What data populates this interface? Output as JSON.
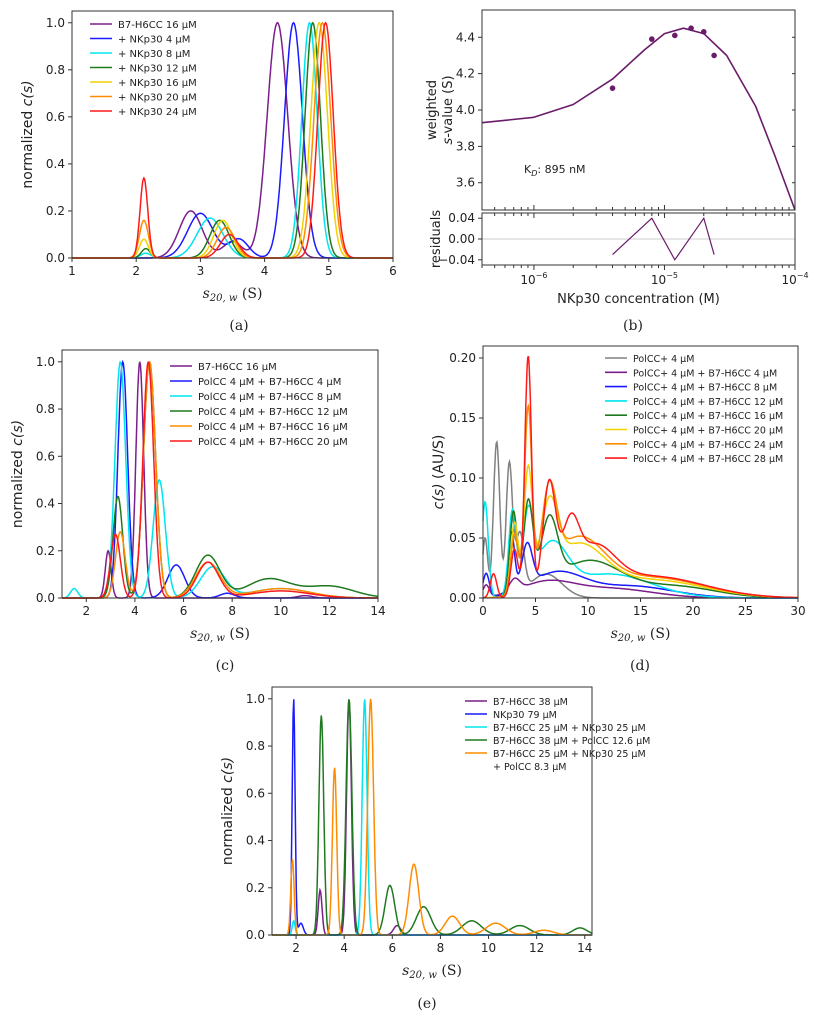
{
  "chart_data": [
    {
      "panel": "(a)",
      "type": "line",
      "xlabel_main": "s",
      "xlabel_sub": "20, w",
      "xlabel_unit": "(S)",
      "ylabel_main": "normalized ",
      "ylabel_italic": "c(s)",
      "xlim": [
        1,
        6
      ],
      "ylim": [
        0,
        1.05
      ],
      "xticks": [
        1,
        2,
        3,
        4,
        5,
        6
      ],
      "yticks": [
        0.0,
        0.2,
        0.4,
        0.6,
        0.8,
        1.0
      ],
      "ytick_labels": [
        "0.0",
        "0.2",
        "0.4",
        "0.6",
        "0.8",
        "1.0"
      ],
      "legend_position": "top-left",
      "series": [
        {
          "name": "B7-H6CC 16 μM",
          "color": "#7b1f8c",
          "peaks": [
            [
              2.85,
              0.2,
              0.18
            ],
            [
              3.5,
              0.07,
              0.15
            ],
            [
              4.2,
              1.0,
              0.16
            ]
          ]
        },
        {
          "name": " + NKp30  4 μM",
          "color": "#1a1aff",
          "peaks": [
            [
              3.0,
              0.19,
              0.2
            ],
            [
              3.6,
              0.08,
              0.15
            ],
            [
              4.45,
              1.0,
              0.14
            ]
          ]
        },
        {
          "name": " + NKp30  8 μM",
          "color": "#00e5ee",
          "peaks": [
            [
              2.15,
              0.02,
              0.08
            ],
            [
              3.15,
              0.17,
              0.2
            ],
            [
              4.7,
              1.0,
              0.12
            ]
          ]
        },
        {
          "name": " + NKp30  12 μM",
          "color": "#1f7a1f",
          "peaks": [
            [
              2.15,
              0.04,
              0.07
            ],
            [
              3.3,
              0.16,
              0.15
            ],
            [
              4.75,
              1.0,
              0.12
            ]
          ]
        },
        {
          "name": " + NKp30  16 μM",
          "color": "#f2d200",
          "peaks": [
            [
              2.12,
              0.08,
              0.07
            ],
            [
              3.35,
              0.16,
              0.14
            ],
            [
              4.85,
              1.0,
              0.13
            ]
          ]
        },
        {
          "name": " + NKp30  20 μM",
          "color": "#ff8c00",
          "peaks": [
            [
              2.12,
              0.16,
              0.07
            ],
            [
              3.4,
              0.13,
              0.14
            ],
            [
              4.9,
              1.0,
              0.13
            ]
          ]
        },
        {
          "name": " + NKp30  24 μM",
          "color": "#ff1a1a",
          "peaks": [
            [
              2.12,
              0.34,
              0.06
            ],
            [
              3.45,
              0.1,
              0.14
            ],
            [
              4.95,
              1.0,
              0.12
            ]
          ]
        }
      ]
    },
    {
      "panel": "(b)",
      "type": "scatter+line",
      "xlabel": "NKp30 concentration (M)",
      "ylabel_line1": "weighted",
      "ylabel_line2_italic": "s",
      "ylabel_line2_rest": "-value (S)",
      "ylabel_residuals": "residuals",
      "annotation": "K",
      "annotation_sub": "D",
      "annotation_rest": ": 895 nM",
      "xscale": "log",
      "xlim": [
        4e-07,
        0.0001
      ],
      "ylim": [
        3.45,
        4.55
      ],
      "yticks": [
        3.6,
        3.8,
        4.0,
        4.2,
        4.4
      ],
      "ytick_labels": [
        "3.6",
        "3.8",
        "4.0",
        "4.2",
        "4.4"
      ],
      "xtick_labels": [
        "10",
        "10",
        "10"
      ],
      "xtick_exponents": [
        "−6",
        "−5",
        "−4"
      ],
      "xtick_values": [
        1e-06,
        1e-05,
        0.0001
      ],
      "color": "#6a1b6a",
      "points": [
        [
          4e-06,
          4.12
        ],
        [
          8e-06,
          4.39
        ],
        [
          1.2e-05,
          4.41
        ],
        [
          1.6e-05,
          4.45
        ],
        [
          2e-05,
          4.43
        ],
        [
          2.4e-05,
          4.3
        ]
      ],
      "fit_curve": [
        [
          4e-07,
          3.93
        ],
        [
          1e-06,
          3.96
        ],
        [
          2e-06,
          4.03
        ],
        [
          4e-06,
          4.17
        ],
        [
          7e-06,
          4.33
        ],
        [
          1e-05,
          4.42
        ],
        [
          1.4e-05,
          4.45
        ],
        [
          2e-05,
          4.42
        ],
        [
          3e-05,
          4.3
        ],
        [
          5e-05,
          4.02
        ],
        [
          7e-05,
          3.75
        ],
        [
          0.0001,
          3.45
        ]
      ],
      "residuals_ylim": [
        -0.05,
        0.05
      ],
      "residuals_yticks": [
        -0.04,
        0.0,
        0.04
      ],
      "residuals_ytick_labels": [
        "−0.04",
        "0.00",
        "0.04"
      ],
      "residuals": [
        [
          4e-06,
          -0.03
        ],
        [
          8e-06,
          0.04
        ],
        [
          1.2e-05,
          -0.04
        ],
        [
          2e-05,
          0.04
        ],
        [
          2.4e-05,
          -0.03
        ]
      ]
    },
    {
      "panel": "(c)",
      "type": "line",
      "xlabel_main": "s",
      "xlabel_sub": "20, w",
      "xlabel_unit": "(S)",
      "ylabel_main": "normalized ",
      "ylabel_italic": "c(s)",
      "xlim": [
        1,
        14
      ],
      "ylim": [
        0,
        1.05
      ],
      "xticks": [
        2,
        4,
        6,
        8,
        10,
        12,
        14
      ],
      "yticks": [
        0.0,
        0.2,
        0.4,
        0.6,
        0.8,
        1.0
      ],
      "ytick_labels": [
        "0.0",
        "0.2",
        "0.4",
        "0.6",
        "0.8",
        "1.0"
      ],
      "legend_position": "top-right",
      "series": [
        {
          "name": "B7-H6CC 16 μM",
          "color": "#7b1f8c",
          "peaks": [
            [
              2.9,
              0.2,
              0.12
            ],
            [
              4.2,
              1.0,
              0.16
            ],
            [
              11.0,
              0.01,
              0.3
            ]
          ]
        },
        {
          "name": "PolCC 4 μM + B7-H6CC 4 μM",
          "color": "#1a1aff",
          "peaks": [
            [
              3.5,
              1.0,
              0.2
            ],
            [
              5.7,
              0.14,
              0.35
            ],
            [
              7.8,
              0.02,
              0.3
            ]
          ]
        },
        {
          "name": "PolCC 4 μM + B7-H6CC 8 μM",
          "color": "#00e5ee",
          "peaks": [
            [
              1.5,
              0.04,
              0.15
            ],
            [
              3.4,
              1.0,
              0.22
            ],
            [
              5.0,
              0.5,
              0.25
            ],
            [
              7.2,
              0.13,
              0.5
            ],
            [
              10.0,
              0.04,
              1.2
            ]
          ]
        },
        {
          "name": "PolCC 4 μM + B7-H6CC 12 μM",
          "color": "#1f7a1f",
          "peaks": [
            [
              3.3,
              0.43,
              0.2
            ],
            [
              4.6,
              1.0,
              0.25
            ],
            [
              7.0,
              0.18,
              0.5
            ],
            [
              9.5,
              0.08,
              0.9
            ],
            [
              12.0,
              0.05,
              1.0
            ]
          ]
        },
        {
          "name": "PolCC 4 μM + B7-H6CC 16 μM",
          "color": "#ff8c00",
          "peaks": [
            [
              3.4,
              0.28,
              0.2
            ],
            [
              4.6,
              1.0,
              0.25
            ],
            [
              7.0,
              0.15,
              0.5
            ],
            [
              10.0,
              0.04,
              1.2
            ]
          ]
        },
        {
          "name": "PolCC 4 μM + B7-H6CC 20 μM",
          "color": "#ff1a1a",
          "peaks": [
            [
              3.2,
              0.27,
              0.2
            ],
            [
              4.55,
              1.0,
              0.22
            ],
            [
              7.0,
              0.15,
              0.45
            ],
            [
              10.0,
              0.03,
              1.2
            ]
          ]
        }
      ]
    },
    {
      "panel": "(d)",
      "type": "line",
      "xlabel_main": "s",
      "xlabel_sub": "20, w",
      "xlabel_unit": "(S)",
      "ylabel_italic": "c(s)",
      "ylabel_main": " (AU/S)",
      "xlim": [
        0,
        30
      ],
      "ylim": [
        0,
        0.21
      ],
      "xticks": [
        0,
        5,
        10,
        15,
        20,
        25,
        30
      ],
      "yticks": [
        0.0,
        0.05,
        0.1,
        0.15,
        0.2
      ],
      "ytick_labels": [
        "0.00",
        "0.05",
        "0.10",
        "0.15",
        "0.20"
      ],
      "legend_position": "top-right",
      "series": [
        {
          "name": "PolCC+ 4 μM",
          "color": "#808080",
          "peaks": [
            [
              0.2,
              0.05,
              0.25
            ],
            [
              1.3,
              0.13,
              0.3
            ],
            [
              2.5,
              0.11,
              0.3
            ],
            [
              3.5,
              0.05,
              0.4
            ],
            [
              6,
              0.02,
              1.5
            ]
          ]
        },
        {
          "name": "PolCC+ 4 μM + B7-H6CC 4 μM",
          "color": "#7b1f8c",
          "peaks": [
            [
              0.3,
              0.01,
              0.3
            ],
            [
              3.0,
              0.01,
              0.5
            ],
            [
              6,
              0.012,
              2.5
            ],
            [
              12,
              0.008,
              4
            ]
          ]
        },
        {
          "name": "PolCC+ 4 μM + B7-H6CC 8 μM",
          "color": "#1a1aff",
          "peaks": [
            [
              0.3,
              0.02,
              0.3
            ],
            [
              2.7,
              0.05,
              0.3
            ],
            [
              4.2,
              0.035,
              0.5
            ],
            [
              7,
              0.02,
              2.5
            ],
            [
              14,
              0.01,
              4
            ]
          ]
        },
        {
          "name": "PolCC+ 4 μM + B7-H6CC 12 μM",
          "color": "#00e5ee",
          "peaks": [
            [
              0.2,
              0.08,
              0.3
            ],
            [
              2.8,
              0.07,
              0.35
            ],
            [
              4.3,
              0.06,
              0.5
            ],
            [
              6.5,
              0.04,
              1.5
            ],
            [
              12,
              0.02,
              4
            ]
          ]
        },
        {
          "name": "PolCC+ 4 μM + B7-H6CC 16 μM",
          "color": "#1f7a1f",
          "peaks": [
            [
              2.9,
              0.07,
              0.35
            ],
            [
              4.3,
              0.075,
              0.45
            ],
            [
              6.3,
              0.055,
              0.8
            ],
            [
              10,
              0.03,
              3
            ],
            [
              18,
              0.01,
              4
            ]
          ]
        },
        {
          "name": "PolCC+ 4 μM + B7-H6CC 20 μM",
          "color": "#f2d200",
          "peaks": [
            [
              3.0,
              0.06,
              0.35
            ],
            [
              4.3,
              0.1,
              0.4
            ],
            [
              6.3,
              0.06,
              0.8
            ],
            [
              9,
              0.04,
              2.5
            ],
            [
              16,
              0.015,
              5
            ]
          ]
        },
        {
          "name": "PolCC+ 4 μM + B7-H6CC 24 μM",
          "color": "#ff8c00",
          "peaks": [
            [
              3.0,
              0.05,
              0.35
            ],
            [
              4.3,
              0.15,
              0.35
            ],
            [
              6.3,
              0.07,
              0.7
            ],
            [
              9,
              0.045,
              2.5
            ],
            [
              16,
              0.017,
              5
            ]
          ]
        },
        {
          "name": "PolCC+ 4 μM + B7-H6CC 28 μM",
          "color": "#ff1a1a",
          "peaks": [
            [
              1.0,
              0.02,
              0.3
            ],
            [
              3.0,
              0.04,
              0.35
            ],
            [
              4.3,
              0.2,
              0.32
            ],
            [
              6.3,
              0.09,
              0.6
            ],
            [
              8.3,
              0.045,
              0.8
            ],
            [
              10.5,
              0.035,
              2
            ],
            [
              16,
              0.018,
              5
            ]
          ]
        }
      ]
    },
    {
      "panel": "(e)",
      "type": "line",
      "xlabel_main": "s",
      "xlabel_sub": "20, w",
      "xlabel_unit": "(S)",
      "ylabel_main": "normalized ",
      "ylabel_italic": "c(s)",
      "xlim": [
        1,
        14.3
      ],
      "ylim": [
        0,
        1.05
      ],
      "xticks": [
        2,
        4,
        6,
        8,
        10,
        12,
        14
      ],
      "yticks": [
        0.0,
        0.2,
        0.4,
        0.6,
        0.8,
        1.0
      ],
      "ytick_labels": [
        "0.0",
        "0.2",
        "0.4",
        "0.6",
        "0.8",
        "1.0"
      ],
      "legend_position": "top-right",
      "series": [
        {
          "name": "B7-H6CC 38 μM",
          "color": "#7b1f8c",
          "peaks": [
            [
              3.0,
              0.19,
              0.08
            ],
            [
              4.2,
              1.0,
              0.1
            ],
            [
              6.2,
              0.04,
              0.15
            ]
          ]
        },
        {
          "name": "NKp30 79 μM",
          "color": "#1a1aff",
          "peaks": [
            [
              1.9,
              1.0,
              0.06
            ],
            [
              2.2,
              0.05,
              0.1
            ]
          ]
        },
        {
          "name": "B7-H6CC 25 μM + NKp30 25 μM",
          "color": "#00e5ee",
          "peaks": [
            [
              1.9,
              0.06,
              0.06
            ],
            [
              4.85,
              1.0,
              0.1
            ]
          ]
        },
        {
          "name": "B7-H6CC 38 μM + PolCC 12.6 μM",
          "color": "#1f7a1f",
          "peaks": [
            [
              3.05,
              0.93,
              0.1
            ],
            [
              4.2,
              1.0,
              0.12
            ],
            [
              5.9,
              0.21,
              0.2
            ],
            [
              7.3,
              0.12,
              0.3
            ],
            [
              9.3,
              0.06,
              0.4
            ],
            [
              11.3,
              0.04,
              0.4
            ],
            [
              13.8,
              0.03,
              0.3
            ]
          ]
        },
        {
          "name": "B7-H6CC 25 μM + NKp30 25 μM",
          "name_line2": "+ PolCC 8.3 μM",
          "color": "#ff8c00",
          "peaks": [
            [
              1.85,
              0.32,
              0.07
            ],
            [
              3.6,
              0.71,
              0.09
            ],
            [
              5.1,
              1.0,
              0.12
            ],
            [
              6.9,
              0.3,
              0.2
            ],
            [
              8.5,
              0.08,
              0.3
            ],
            [
              10.3,
              0.05,
              0.4
            ],
            [
              12.3,
              0.02,
              0.4
            ]
          ]
        }
      ]
    }
  ],
  "panel_labels": [
    "(a)",
    "(b)",
    "(c)",
    "(d)",
    "(e)"
  ]
}
